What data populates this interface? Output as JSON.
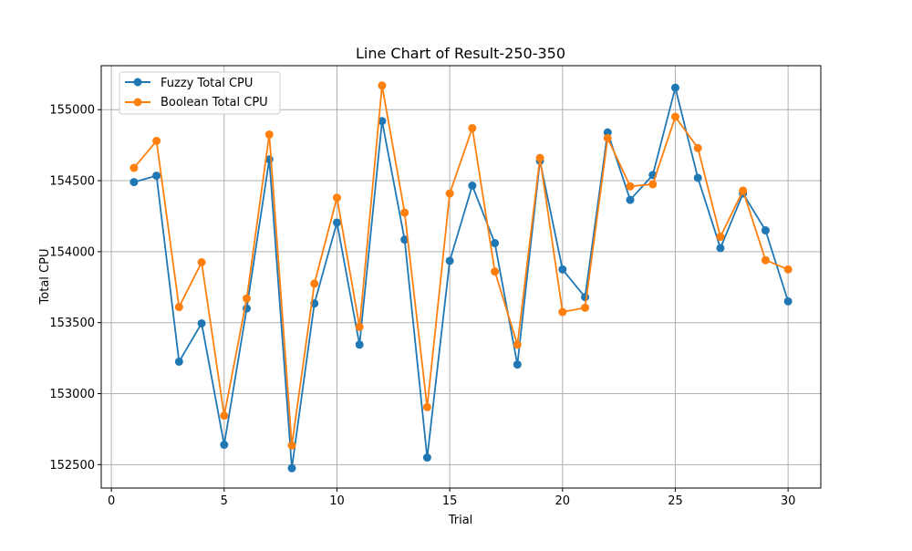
{
  "chart_data": {
    "type": "line",
    "title": "Line Chart of Result-250-350",
    "xlabel": "Trial",
    "ylabel": "Total CPU",
    "xlim": [
      -0.45,
      31.45
    ],
    "ylim": [
      152335,
      155310
    ],
    "x_ticks": [
      0,
      5,
      10,
      15,
      20,
      25,
      30
    ],
    "y_ticks": [
      152500,
      153000,
      153500,
      154000,
      154500,
      155000
    ],
    "grid": true,
    "legend_position": "top-left",
    "x": [
      1,
      2,
      3,
      4,
      5,
      6,
      7,
      8,
      9,
      10,
      11,
      12,
      13,
      14,
      15,
      16,
      17,
      18,
      19,
      20,
      21,
      22,
      23,
      24,
      25,
      26,
      27,
      28,
      29,
      30
    ],
    "series": [
      {
        "name": "Fuzzy Total CPU",
        "color": "#1f77b4",
        "values": [
          154490,
          154535,
          153225,
          153495,
          152640,
          153600,
          154650,
          152475,
          153635,
          154205,
          153345,
          154920,
          154085,
          152550,
          153935,
          154465,
          154060,
          153205,
          154640,
          153875,
          153680,
          154840,
          154365,
          154540,
          155155,
          154520,
          154025,
          154410,
          154150,
          153650
        ]
      },
      {
        "name": "Boolean Total CPU",
        "color": "#ff7f0e",
        "values": [
          154590,
          154780,
          153610,
          153925,
          152845,
          153670,
          154825,
          152635,
          153775,
          154380,
          153470,
          155170,
          154275,
          152905,
          154410,
          154870,
          153860,
          153345,
          154660,
          153575,
          153605,
          154800,
          154460,
          154475,
          154950,
          154730,
          154105,
          154430,
          153940,
          153875
        ]
      }
    ]
  }
}
